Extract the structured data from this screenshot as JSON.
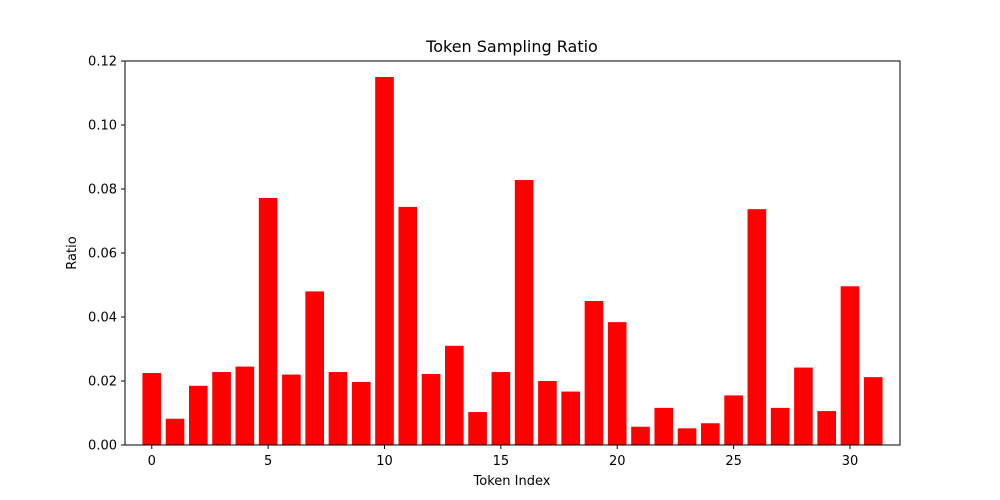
{
  "chart_data": {
    "type": "bar",
    "title": "Token Sampling Ratio",
    "xlabel": "Token Index",
    "ylabel": "Ratio",
    "x": [
      0,
      1,
      2,
      3,
      4,
      5,
      6,
      7,
      8,
      9,
      10,
      11,
      12,
      13,
      14,
      15,
      16,
      17,
      18,
      19,
      20,
      21,
      22,
      23,
      24,
      25,
      26,
      27,
      28,
      29,
      30,
      31
    ],
    "values": [
      0.0225,
      0.0082,
      0.0185,
      0.0228,
      0.0245,
      0.0772,
      0.022,
      0.048,
      0.0228,
      0.0197,
      0.115,
      0.0744,
      0.0222,
      0.031,
      0.0103,
      0.0228,
      0.0828,
      0.02,
      0.0167,
      0.045,
      0.0384,
      0.0057,
      0.0116,
      0.0052,
      0.0068,
      0.0155,
      0.0737,
      0.0116,
      0.0242,
      0.0106,
      0.0496,
      0.0212
    ],
    "xlim": [
      -1.15,
      32.15
    ],
    "ylim": [
      0,
      0.12
    ],
    "xticks": [
      0,
      5,
      10,
      15,
      20,
      25,
      30
    ],
    "xtick_labels": [
      "0",
      "5",
      "10",
      "15",
      "20",
      "25",
      "30"
    ],
    "yticks": [
      0,
      0.02,
      0.04,
      0.06,
      0.08,
      0.1,
      0.12
    ],
    "ytick_labels": [
      "0.00",
      "0.02",
      "0.04",
      "0.06",
      "0.08",
      "0.10",
      "0.12"
    ],
    "bar_color": "#ff0000",
    "grid": false,
    "legend": "none"
  }
}
